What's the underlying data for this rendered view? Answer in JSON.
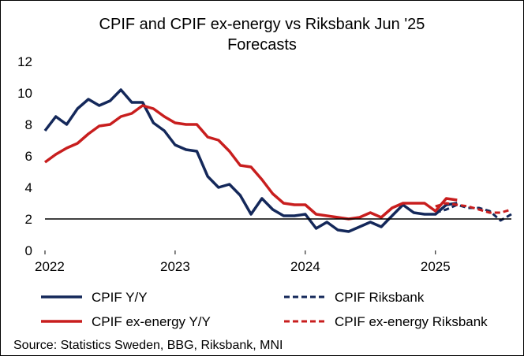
{
  "chart_data": {
    "type": "line",
    "title_line1": "CPIF and CPIF ex-energy vs Riksbank Jun '25",
    "title_line2": "Forecasts",
    "ylim": [
      0,
      12
    ],
    "yticks": [
      "0",
      "2",
      "4",
      "6",
      "8",
      "10",
      "12"
    ],
    "xlim": [
      "2022-01",
      "2025-08"
    ],
    "xticks": [
      {
        "label": "2022",
        "date": "2022-01"
      },
      {
        "label": "2023",
        "date": "2023-01"
      },
      {
        "label": "2024",
        "date": "2024-01"
      },
      {
        "label": "2025",
        "date": "2025-01"
      }
    ],
    "reference_line": 2,
    "grid": false,
    "legend_position": "bottom",
    "source": "Source: Statistics Sweden, BBG, Riksbank, MNI",
    "series": [
      {
        "name": "CPIF Y/Y",
        "color": "#14285a",
        "style": "solid",
        "points": [
          [
            "2022-01",
            7.6
          ],
          [
            "2022-02",
            8.5
          ],
          [
            "2022-03",
            8.0
          ],
          [
            "2022-04",
            9.0
          ],
          [
            "2022-05",
            9.6
          ],
          [
            "2022-06",
            9.2
          ],
          [
            "2022-07",
            9.5
          ],
          [
            "2022-08",
            10.2
          ],
          [
            "2022-09",
            9.4
          ],
          [
            "2022-10",
            9.4
          ],
          [
            "2022-11",
            8.1
          ],
          [
            "2022-12",
            7.6
          ],
          [
            "2023-01",
            6.7
          ],
          [
            "2023-02",
            6.4
          ],
          [
            "2023-03",
            6.3
          ],
          [
            "2023-04",
            4.7
          ],
          [
            "2023-05",
            4.0
          ],
          [
            "2023-06",
            4.2
          ],
          [
            "2023-07",
            3.5
          ],
          [
            "2023-08",
            2.3
          ],
          [
            "2023-09",
            3.3
          ],
          [
            "2023-10",
            2.6
          ],
          [
            "2023-11",
            2.2
          ],
          [
            "2023-12",
            2.2
          ],
          [
            "2024-01",
            2.3
          ],
          [
            "2024-02",
            1.4
          ],
          [
            "2024-03",
            1.8
          ],
          [
            "2024-04",
            1.3
          ],
          [
            "2024-05",
            1.2
          ],
          [
            "2024-06",
            1.5
          ],
          [
            "2024-07",
            1.8
          ],
          [
            "2024-08",
            1.5
          ],
          [
            "2024-09",
            2.2
          ],
          [
            "2024-10",
            2.9
          ],
          [
            "2024-11",
            2.4
          ],
          [
            "2024-12",
            2.3
          ],
          [
            "2025-01",
            2.3
          ],
          [
            "2025-02",
            2.9
          ],
          [
            "2025-03",
            3.0
          ]
        ]
      },
      {
        "name": "CPIF Riksbank",
        "color": "#14285a",
        "style": "dashed",
        "points": [
          [
            "2025-01",
            2.4
          ],
          [
            "2025-02",
            2.6
          ],
          [
            "2025-03",
            2.9
          ],
          [
            "2025-04",
            2.7
          ],
          [
            "2025-05",
            2.7
          ],
          [
            "2025-06",
            2.5
          ],
          [
            "2025-07",
            1.9
          ],
          [
            "2025-08",
            2.3
          ]
        ]
      },
      {
        "name": "CPIF ex-energy Y/Y",
        "color": "#c81e1e",
        "style": "solid",
        "points": [
          [
            "2022-01",
            5.6
          ],
          [
            "2022-02",
            6.1
          ],
          [
            "2022-03",
            6.5
          ],
          [
            "2022-04",
            6.8
          ],
          [
            "2022-05",
            7.4
          ],
          [
            "2022-06",
            7.9
          ],
          [
            "2022-07",
            8.0
          ],
          [
            "2022-08",
            8.5
          ],
          [
            "2022-09",
            8.7
          ],
          [
            "2022-10",
            9.2
          ],
          [
            "2022-11",
            9.0
          ],
          [
            "2022-12",
            8.5
          ],
          [
            "2023-01",
            8.1
          ],
          [
            "2023-02",
            8.0
          ],
          [
            "2023-03",
            8.0
          ],
          [
            "2023-04",
            7.2
          ],
          [
            "2023-05",
            7.0
          ],
          [
            "2023-06",
            6.3
          ],
          [
            "2023-07",
            5.4
          ],
          [
            "2023-08",
            5.3
          ],
          [
            "2023-09",
            4.5
          ],
          [
            "2023-10",
            3.6
          ],
          [
            "2023-11",
            3.0
          ],
          [
            "2023-12",
            2.9
          ],
          [
            "2024-01",
            2.9
          ],
          [
            "2024-02",
            2.3
          ],
          [
            "2024-03",
            2.2
          ],
          [
            "2024-04",
            2.1
          ],
          [
            "2024-05",
            2.0
          ],
          [
            "2024-06",
            2.1
          ],
          [
            "2024-07",
            2.4
          ],
          [
            "2024-08",
            2.1
          ],
          [
            "2024-09",
            2.7
          ],
          [
            "2024-10",
            3.0
          ],
          [
            "2024-11",
            3.0
          ],
          [
            "2024-12",
            3.0
          ],
          [
            "2025-01",
            2.5
          ],
          [
            "2025-02",
            3.3
          ],
          [
            "2025-03",
            3.2
          ]
        ]
      },
      {
        "name": "CPIF ex-energy Riksbank",
        "color": "#c81e1e",
        "style": "dashed",
        "points": [
          [
            "2025-01",
            2.8
          ],
          [
            "2025-02",
            3.0
          ],
          [
            "2025-03",
            2.9
          ],
          [
            "2025-04",
            2.8
          ],
          [
            "2025-05",
            2.6
          ],
          [
            "2025-06",
            2.4
          ],
          [
            "2025-07",
            2.4
          ],
          [
            "2025-08",
            2.6
          ]
        ]
      }
    ]
  }
}
